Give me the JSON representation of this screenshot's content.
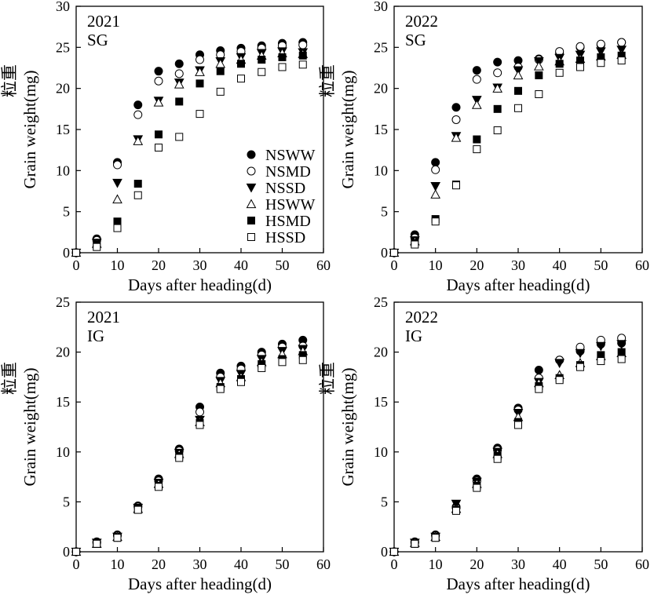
{
  "chart_data": [
    {
      "type": "scatter",
      "title_lines": [
        "2021",
        "SG"
      ],
      "xlabel": "Days after heading(d)",
      "ylabel": "Grain weight(mg)",
      "ylabel_cn": "粒重",
      "xlim": [
        0,
        60
      ],
      "ylim": [
        0,
        30
      ],
      "xticks": [
        "0",
        "10",
        "20",
        "30",
        "40",
        "50",
        "60"
      ],
      "yticks": [
        "0",
        "5",
        "10",
        "15",
        "20",
        "25",
        "30"
      ],
      "legend": true,
      "x": [
        0,
        5,
        10,
        15,
        20,
        25,
        30,
        35,
        40,
        45,
        50,
        55
      ],
      "series": [
        {
          "name": "NSWW",
          "values": [
            0,
            1.7,
            11.0,
            18.0,
            22.1,
            23.0,
            24.1,
            24.6,
            24.9,
            25.2,
            25.5,
            25.6
          ]
        },
        {
          "name": "NSMD",
          "values": [
            0,
            1.5,
            10.7,
            16.8,
            20.9,
            21.8,
            23.5,
            24.1,
            24.5,
            24.9,
            25.2,
            25.3
          ]
        },
        {
          "name": "NSSD",
          "values": [
            0,
            1.2,
            8.5,
            13.8,
            18.5,
            20.7,
            22.2,
            23.3,
            23.8,
            24.3,
            24.5,
            24.4
          ]
        },
        {
          "name": "HSWW",
          "values": [
            0,
            1.1,
            6.5,
            13.6,
            18.3,
            20.5,
            22.0,
            23.0,
            23.5,
            24.0,
            24.3,
            24.2
          ]
        },
        {
          "name": "HSMD",
          "values": [
            0,
            1.0,
            3.8,
            8.4,
            14.4,
            18.4,
            20.6,
            22.1,
            23.0,
            23.5,
            23.8,
            24.0
          ]
        },
        {
          "name": "HSSD",
          "values": [
            0,
            0.7,
            3.0,
            7.0,
            12.8,
            14.1,
            16.9,
            19.6,
            21.2,
            22.0,
            22.6,
            22.9
          ]
        }
      ]
    },
    {
      "type": "scatter",
      "title_lines": [
        "2022",
        "SG"
      ],
      "xlabel": "Days after heading(d)",
      "ylabel": "Grain weight(mg)",
      "ylabel_cn": "粒重",
      "xlim": [
        0,
        60
      ],
      "ylim": [
        0,
        30
      ],
      "xticks": [
        "0",
        "10",
        "20",
        "30",
        "40",
        "50",
        "60"
      ],
      "yticks": [
        "0",
        "5",
        "10",
        "15",
        "20",
        "25",
        "30"
      ],
      "legend": false,
      "x": [
        0,
        5,
        10,
        15,
        20,
        25,
        30,
        35,
        40,
        45,
        50,
        55
      ],
      "series": [
        {
          "name": "NSWW",
          "values": [
            0,
            2.2,
            11.0,
            17.7,
            22.2,
            23.2,
            23.4,
            23.6,
            24.3,
            25.0,
            25.3,
            25.6
          ]
        },
        {
          "name": "NSMD",
          "values": [
            0,
            1.8,
            10.1,
            16.2,
            21.1,
            21.9,
            22.6,
            23.5,
            24.5,
            25.1,
            25.4,
            25.6
          ]
        },
        {
          "name": "NSSD",
          "values": [
            0,
            1.5,
            8.1,
            14.2,
            18.6,
            20.1,
            22.2,
            23.3,
            23.7,
            24.1,
            24.5,
            24.7
          ]
        },
        {
          "name": "HSWW",
          "values": [
            0,
            1.4,
            7.1,
            14.0,
            18.0,
            20.0,
            21.6,
            22.7,
            23.3,
            23.6,
            23.9,
            24.1
          ]
        },
        {
          "name": "HSMD",
          "values": [
            0,
            1.2,
            4.1,
            8.3,
            13.8,
            17.5,
            19.7,
            21.6,
            23.0,
            23.4,
            23.8,
            24.0
          ]
        },
        {
          "name": "HSSD",
          "values": [
            0,
            1.0,
            3.8,
            8.2,
            12.6,
            14.9,
            17.6,
            19.3,
            21.9,
            22.6,
            23.1,
            23.4
          ]
        }
      ]
    },
    {
      "type": "scatter",
      "title_lines": [
        "2021",
        "IG"
      ],
      "xlabel": "Days after heading(d)",
      "ylabel": "Grain weight(mg)",
      "ylabel_cn": "粒重",
      "xlim": [
        0,
        60
      ],
      "ylim": [
        0,
        25
      ],
      "xticks": [
        "0",
        "10",
        "20",
        "30",
        "40",
        "50",
        "60"
      ],
      "yticks": [
        "0",
        "5",
        "10",
        "15",
        "20",
        "25"
      ],
      "legend": false,
      "x": [
        0,
        5,
        10,
        15,
        20,
        25,
        30,
        35,
        40,
        45,
        50,
        55
      ],
      "series": [
        {
          "name": "NSWW",
          "values": [
            0,
            1.0,
            1.7,
            4.6,
            7.3,
            10.3,
            14.5,
            17.9,
            18.6,
            20.0,
            20.8,
            21.2
          ]
        },
        {
          "name": "NSMD",
          "values": [
            0,
            0.9,
            1.6,
            4.5,
            7.1,
            10.1,
            14.0,
            17.5,
            18.3,
            19.7,
            20.5,
            20.6
          ]
        },
        {
          "name": "NSSD",
          "values": [
            0,
            0.9,
            1.5,
            4.4,
            6.9,
            9.9,
            13.2,
            17.1,
            17.8,
            19.3,
            20.1,
            20.3
          ]
        },
        {
          "name": "HSWW",
          "values": [
            0,
            0.8,
            1.5,
            4.3,
            6.8,
            9.8,
            13.0,
            16.9,
            17.5,
            19.0,
            19.8,
            20.1
          ]
        },
        {
          "name": "HSMD",
          "values": [
            0,
            0.8,
            1.4,
            4.3,
            6.6,
            9.6,
            12.9,
            16.5,
            17.3,
            18.8,
            19.3,
            19.7
          ]
        },
        {
          "name": "HSSD",
          "values": [
            0,
            0.8,
            1.4,
            4.2,
            6.5,
            9.4,
            12.7,
            16.3,
            17.0,
            18.4,
            19.0,
            19.2
          ]
        }
      ]
    },
    {
      "type": "scatter",
      "title_lines": [
        "2022",
        "IG"
      ],
      "xlabel": "Days after heading(d)",
      "ylabel": "Grain weight(mg)",
      "ylabel_cn": "粒重",
      "xlim": [
        0,
        60
      ],
      "ylim": [
        0,
        25
      ],
      "xticks": [
        "0",
        "10",
        "20",
        "30",
        "40",
        "50",
        "60"
      ],
      "yticks": [
        "0",
        "5",
        "10",
        "15",
        "20",
        "25"
      ],
      "legend": false,
      "x": [
        0,
        5,
        10,
        15,
        20,
        25,
        30,
        35,
        40,
        45,
        50,
        55
      ],
      "series": [
        {
          "name": "NSWW",
          "values": [
            0,
            1.0,
            1.7,
            4.5,
            7.3,
            10.4,
            14.4,
            18.2,
            19.2,
            20.1,
            20.8,
            20.9
          ]
        },
        {
          "name": "NSMD",
          "values": [
            0,
            0.9,
            1.6,
            4.4,
            7.1,
            10.2,
            14.2,
            17.4,
            19.2,
            20.5,
            21.2,
            21.4
          ]
        },
        {
          "name": "NSSD",
          "values": [
            0,
            0.9,
            1.5,
            4.8,
            7.0,
            10.0,
            13.9,
            17.0,
            18.9,
            19.9,
            20.6,
            20.8
          ]
        },
        {
          "name": "HSWW",
          "values": [
            0,
            0.9,
            1.5,
            4.3,
            6.8,
            9.8,
            13.5,
            16.9,
            17.7,
            18.9,
            19.6,
            19.9
          ]
        },
        {
          "name": "HSMD",
          "values": [
            0,
            0.8,
            1.4,
            4.2,
            6.6,
            9.6,
            13.0,
            16.6,
            17.4,
            18.7,
            19.7,
            20.0
          ]
        },
        {
          "name": "HSSD",
          "values": [
            0,
            0.8,
            1.4,
            4.1,
            6.4,
            9.3,
            12.7,
            16.3,
            17.2,
            18.5,
            19.1,
            19.3
          ]
        }
      ]
    }
  ],
  "legend": {
    "items": [
      {
        "label": "NSWW",
        "marker": "filled-circle"
      },
      {
        "label": "NSMD",
        "marker": "open-circle"
      },
      {
        "label": "NSSD",
        "marker": "filled-triangle-down"
      },
      {
        "label": "HSWW",
        "marker": "open-triangle-up"
      },
      {
        "label": "HSMD",
        "marker": "filled-square"
      },
      {
        "label": "HSSD",
        "marker": "open-square"
      }
    ]
  }
}
